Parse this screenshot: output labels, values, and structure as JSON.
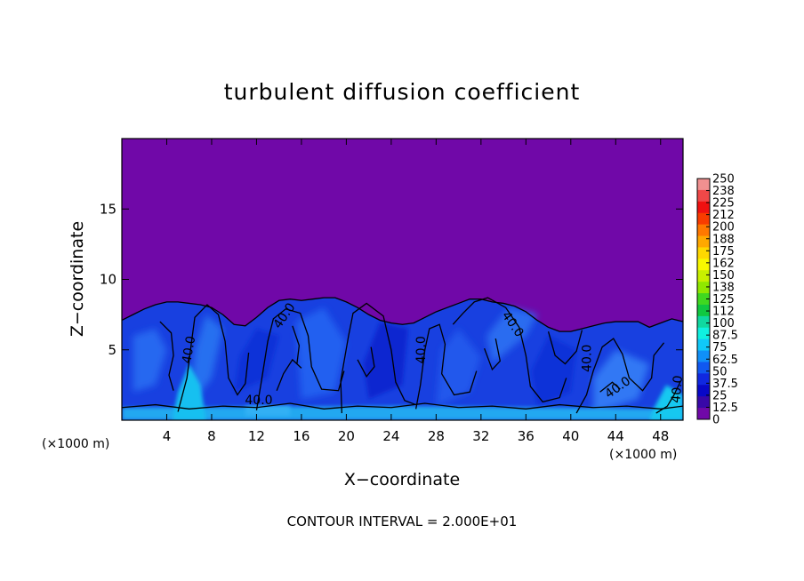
{
  "chart_data": {
    "type": "heatmap",
    "title": "turbulent diffusion coefficient",
    "xlabel": "X−coordinate",
    "ylabel": "Z−coordinate",
    "x_unit_left": "(×1000 m)",
    "x_unit_right": "(×1000 m)",
    "footnote": "CONTOUR INTERVAL = 2.000E+01",
    "xlim": [
      0,
      50
    ],
    "ylim": [
      0,
      20
    ],
    "x_ticks": [
      "4",
      "8",
      "12",
      "16",
      "20",
      "24",
      "28",
      "32",
      "36",
      "40",
      "44",
      "48"
    ],
    "y_ticks": [
      "5",
      "10",
      "15"
    ],
    "colorbar": {
      "labels": [
        "250",
        "238",
        "225",
        "212",
        "200",
        "188",
        "175",
        "162",
        "150",
        "138",
        "125",
        "112",
        "100",
        "87.5",
        "75",
        "62.5",
        "50",
        "37.5",
        "25",
        "12.5",
        "0"
      ],
      "colors": [
        "#f09090",
        "#f04848",
        "#f01010",
        "#f83c00",
        "#ff7800",
        "#ffa800",
        "#ffd800",
        "#f8f800",
        "#c8f000",
        "#90e800",
        "#40d820",
        "#10c840",
        "#10d8a0",
        "#10f0e0",
        "#10c8f8",
        "#1090f8",
        "#1058f0",
        "#1028e0",
        "#0808c8",
        "#3808a8",
        "#7008a8"
      ]
    },
    "top_envelope": [
      [
        0,
        7.1
      ],
      [
        1,
        7.5
      ],
      [
        2,
        7.9
      ],
      [
        3,
        8.2
      ],
      [
        4,
        8.4
      ],
      [
        5,
        8.4
      ],
      [
        6,
        8.3
      ],
      [
        7,
        8.2
      ],
      [
        8,
        8.0
      ],
      [
        9,
        7.5
      ],
      [
        10,
        6.8
      ],
      [
        11,
        6.7
      ],
      [
        12,
        7.3
      ],
      [
        13,
        8.0
      ],
      [
        14,
        8.5
      ],
      [
        15,
        8.6
      ],
      [
        16,
        8.5
      ],
      [
        17,
        8.6
      ],
      [
        18,
        8.7
      ],
      [
        19,
        8.7
      ],
      [
        20,
        8.4
      ],
      [
        21,
        8.0
      ],
      [
        22,
        7.5
      ],
      [
        23,
        7.1
      ],
      [
        24,
        6.9
      ],
      [
        25,
        6.8
      ],
      [
        26,
        6.9
      ],
      [
        27,
        7.3
      ],
      [
        28,
        7.7
      ],
      [
        29,
        8.0
      ],
      [
        30,
        8.3
      ],
      [
        31,
        8.6
      ],
      [
        32,
        8.6
      ],
      [
        33,
        8.4
      ],
      [
        34,
        8.3
      ],
      [
        35,
        8.1
      ],
      [
        36,
        7.7
      ],
      [
        37,
        7.1
      ],
      [
        38,
        6.6
      ],
      [
        39,
        6.3
      ],
      [
        40,
        6.3
      ],
      [
        41,
        6.5
      ],
      [
        42,
        6.7
      ],
      [
        43,
        6.9
      ],
      [
        44,
        7.0
      ],
      [
        45,
        7.0
      ],
      [
        46,
        7.0
      ],
      [
        47,
        6.6
      ],
      [
        48,
        6.9
      ],
      [
        49,
        7.2
      ],
      [
        50,
        7.0
      ]
    ],
    "contour_labels": [
      {
        "text": "40.0",
        "x": 6.0,
        "y": 5.0,
        "angle": -80
      },
      {
        "text": "40.0",
        "x": 14.5,
        "y": 7.4,
        "angle": -55
      },
      {
        "text": "40.0",
        "x": 12.2,
        "y": 1.4,
        "angle": 0
      },
      {
        "text": "40.0",
        "x": 26.7,
        "y": 5.0,
        "angle": -90
      },
      {
        "text": "40.0",
        "x": 34.8,
        "y": 6.8,
        "angle": 55
      },
      {
        "text": "40.0",
        "x": 41.5,
        "y": 4.4,
        "angle": -90
      },
      {
        "text": "40.0",
        "x": 44.2,
        "y": 2.3,
        "angle": -35
      },
      {
        "text": "40.0",
        "x": 49.5,
        "y": 2.2,
        "angle": -85
      }
    ],
    "grid": false,
    "legend": "colorbar-right"
  }
}
